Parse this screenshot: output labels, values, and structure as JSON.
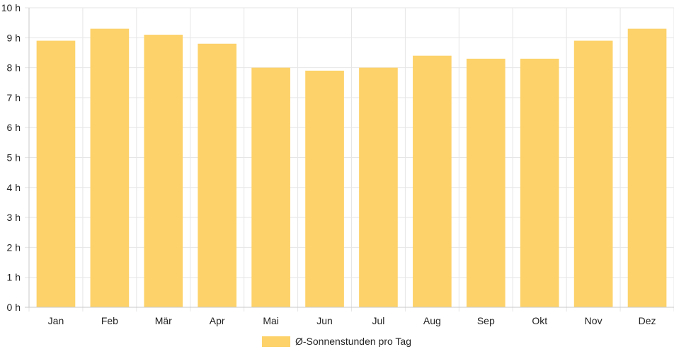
{
  "chart_data": {
    "type": "bar",
    "categories": [
      "Jan",
      "Feb",
      "Mär",
      "Apr",
      "Mai",
      "Jun",
      "Jul",
      "Aug",
      "Sep",
      "Okt",
      "Nov",
      "Dez"
    ],
    "series": [
      {
        "name": "Ø-Sonnenstunden pro Tag",
        "values": [
          8.9,
          9.3,
          9.1,
          8.8,
          8.0,
          7.9,
          8.0,
          8.4,
          8.3,
          8.3,
          8.9,
          9.3
        ]
      }
    ],
    "ylim": [
      0,
      10
    ],
    "y_ticks": [
      "0 h",
      "1 h",
      "2 h",
      "3 h",
      "4 h",
      "5 h",
      "6 h",
      "7 h",
      "8 h",
      "9 h",
      "10 h"
    ],
    "grid": true,
    "legend_position": "bottom",
    "colors": {
      "bar": "#fdd26a",
      "grid": "#e6e6e6",
      "axis": "#c8c8c8"
    }
  }
}
